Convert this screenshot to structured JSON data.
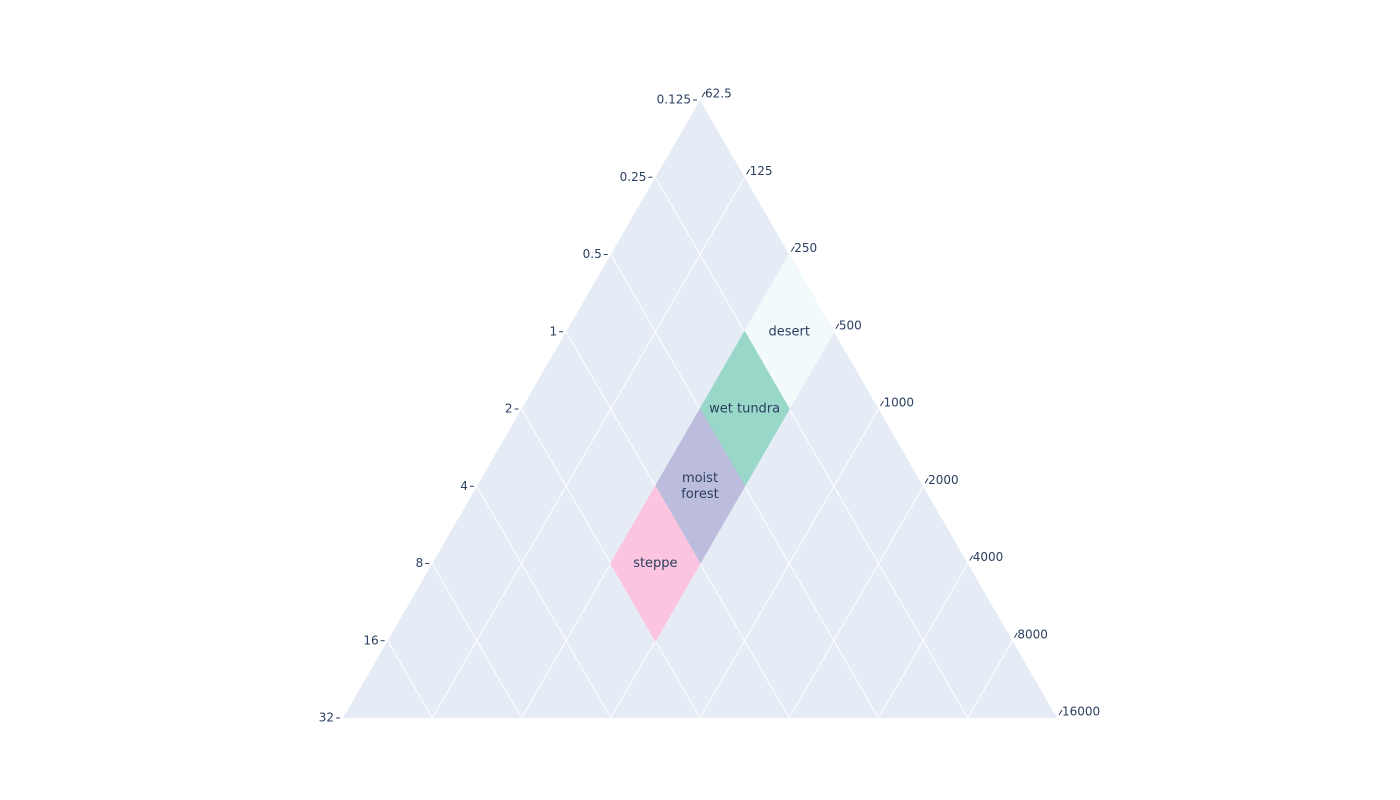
{
  "chart_data": {
    "type": "ternary-log",
    "left_axis": {
      "lim": [
        0.125,
        32
      ],
      "ticks": [
        0.125,
        0.25,
        0.5,
        1,
        2,
        4,
        8,
        16,
        32
      ]
    },
    "right_axis": {
      "lim": [
        62.5,
        16000
      ],
      "ticks": [
        62.5,
        125,
        250,
        500,
        1000,
        2000,
        4000,
        8000,
        16000
      ]
    },
    "grid": true,
    "zones": [
      {
        "name": [
          "desert"
        ],
        "color": "#f3fafb",
        "left": [
          0.125,
          0.125,
          0.25,
          0.25
        ],
        "right": [
          250,
          500,
          500,
          250
        ]
      },
      {
        "name": [
          "wet tundra"
        ],
        "color": "#99d8c9",
        "left": [
          0.25,
          0.25,
          0.5,
          0.5
        ],
        "right": [
          250,
          500,
          500,
          250
        ]
      },
      {
        "name": [
          "moist",
          "forest"
        ],
        "color": "#bcbddc",
        "left": [
          0.5,
          0.5,
          1,
          1
        ],
        "right": [
          250,
          500,
          500,
          250
        ]
      },
      {
        "name": [
          "steppe"
        ],
        "color": "#fcc5df",
        "left": [
          1,
          1,
          2,
          2
        ],
        "right": [
          250,
          500,
          500,
          250
        ]
      }
    ]
  }
}
